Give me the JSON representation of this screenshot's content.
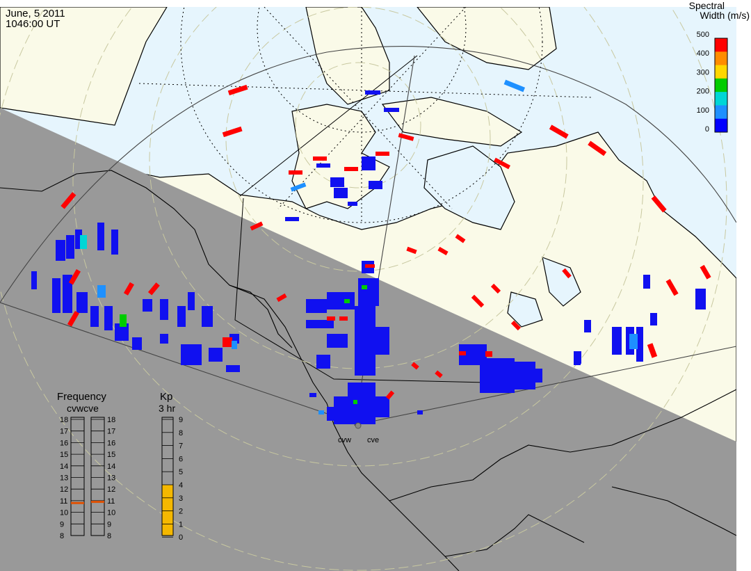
{
  "header": {
    "date": "June, 5 2011",
    "time": "1046:00 UT"
  },
  "colorbar": {
    "title_line1": "Spectral",
    "title_line2": "Width (m/s)",
    "ticks": [
      "500",
      "400",
      "300",
      "200",
      "100",
      "0"
    ],
    "colors": [
      "#ff0000",
      "#ff8c00",
      "#ffd700",
      "#00cc00",
      "#00d6d6",
      "#1e90ff",
      "#0000ff"
    ]
  },
  "radars": {
    "west_label": "cvw",
    "east_label": "cve"
  },
  "frequency_panel": {
    "title": "Frequency",
    "subtitle": "cvwcve",
    "ticks": [
      "18",
      "17",
      "16",
      "15",
      "14",
      "13",
      "12",
      "11",
      "10",
      "9",
      "8"
    ],
    "cvw_value": 10.8,
    "cve_value": 10.9,
    "marker_color": "#e05000"
  },
  "kp_panel": {
    "title": "Kp",
    "subtitle": "3 hr",
    "ticks": [
      "9",
      "8",
      "7",
      "6",
      "5",
      "4",
      "3",
      "2",
      "1",
      "0"
    ],
    "value": 4,
    "fill_color": "#f5b800"
  },
  "map_colors": {
    "night": "#999999",
    "land": "#fafae8",
    "ocean": "#e6f5fd",
    "coast": "#000000"
  }
}
